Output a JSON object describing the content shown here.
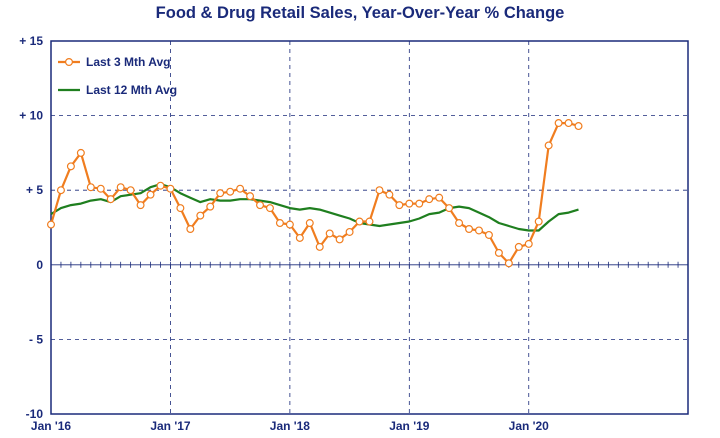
{
  "chart_data": {
    "type": "line",
    "title": "Food & Drug Retail Sales, Year-Over-Year % Change",
    "xlabel": "",
    "ylabel": "",
    "x_start": "2016-01",
    "x_end": "2021-05",
    "x_ticks": [
      "Jan '16",
      "Jan '17",
      "Jan '18",
      "Jan '19",
      "Jan '20"
    ],
    "ylim": [
      -10,
      15
    ],
    "y_ticks": [
      15,
      10,
      5,
      0,
      -5,
      -10
    ],
    "y_tick_labels": [
      "+ 15",
      "+ 10",
      "+ 5",
      "0",
      "- 5",
      "-10"
    ],
    "grid": true,
    "legend_position": "top-left",
    "x": [
      "2016-01",
      "2016-02",
      "2016-03",
      "2016-04",
      "2016-05",
      "2016-06",
      "2016-07",
      "2016-08",
      "2016-09",
      "2016-10",
      "2016-11",
      "2016-12",
      "2017-01",
      "2017-02",
      "2017-03",
      "2017-04",
      "2017-05",
      "2017-06",
      "2017-07",
      "2017-08",
      "2017-09",
      "2017-10",
      "2017-11",
      "2017-12",
      "2018-01",
      "2018-02",
      "2018-03",
      "2018-04",
      "2018-05",
      "2018-06",
      "2018-07",
      "2018-08",
      "2018-09",
      "2018-10",
      "2018-11",
      "2018-12",
      "2019-01",
      "2019-02",
      "2019-03",
      "2019-04",
      "2019-05",
      "2019-06",
      "2019-07",
      "2019-08",
      "2019-09",
      "2019-10",
      "2019-11",
      "2019-12",
      "2020-01",
      "2020-02",
      "2020-03",
      "2020-04",
      "2020-05",
      "2020-06"
    ],
    "series": [
      {
        "name": "Last 3 Mth Avg",
        "color": "#f07d1f",
        "marker": "circle",
        "values": [
          2.7,
          5.0,
          6.6,
          7.5,
          5.2,
          5.1,
          4.4,
          5.2,
          5.0,
          4.0,
          4.7,
          5.3,
          5.1,
          3.8,
          2.4,
          3.3,
          3.9,
          4.8,
          4.9,
          5.1,
          4.6,
          4.0,
          3.8,
          2.8,
          2.7,
          1.8,
          2.8,
          1.2,
          2.1,
          1.7,
          2.2,
          2.9,
          2.9,
          5.0,
          4.7,
          4.0,
          4.1,
          4.1,
          4.4,
          4.5,
          3.8,
          2.8,
          2.4,
          2.3,
          2.0,
          0.8,
          0.1,
          1.2,
          1.4,
          2.9,
          8.0,
          9.5,
          9.5,
          9.3
        ]
      },
      {
        "name": "Last 12 Mth Avg",
        "color": "#1f7f1f",
        "marker": "none",
        "values": [
          3.4,
          3.8,
          4.0,
          4.1,
          4.3,
          4.4,
          4.2,
          4.6,
          4.7,
          4.8,
          5.2,
          5.4,
          5.2,
          4.8,
          4.5,
          4.2,
          4.4,
          4.3,
          4.3,
          4.4,
          4.4,
          4.3,
          4.2,
          4.0,
          3.8,
          3.7,
          3.8,
          3.7,
          3.5,
          3.3,
          3.1,
          2.8,
          2.7,
          2.6,
          2.7,
          2.8,
          2.9,
          3.1,
          3.4,
          3.5,
          3.8,
          3.9,
          3.8,
          3.5,
          3.2,
          2.8,
          2.6,
          2.4,
          2.3,
          2.3,
          2.9,
          3.4,
          3.5,
          3.7
        ]
      }
    ]
  }
}
